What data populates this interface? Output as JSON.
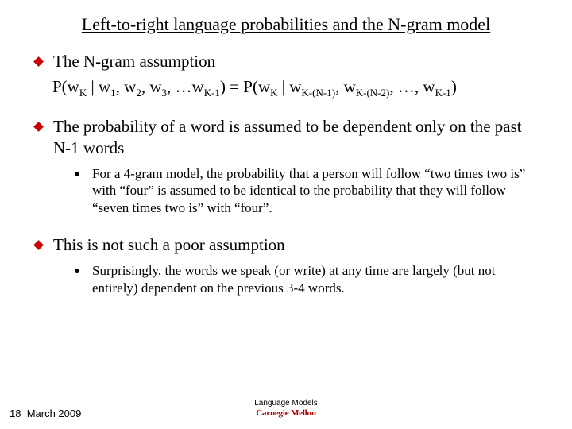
{
  "title": "Left-to-right language probabilities and the N-gram model",
  "points": {
    "p1": "The N-gram assumption",
    "p2": "The probability of a word is assumed to be dependent only on the past N-1 words",
    "p3": "This is not such a poor assumption"
  },
  "sub": {
    "s1": "For a 4-gram model, the probability that  a person will follow “two times two is” with “four” is assumed to be identical to the probability that  they will follow “seven times two is” with “four”.",
    "s2": "Surprisingly, the words we speak (or write) at any time are largely (but not entirely) dependent on the previous 3-4 words."
  },
  "formula": {
    "lhs_pre": "P(w",
    "lhs_k": "K",
    "bar": " | w",
    "s1": "1",
    "c": ", w",
    "s2": "2",
    "s3": "3",
    "dots": ", …w",
    "skm1": "K-1",
    "close": ") = P(w",
    "rk": "K",
    "rbar": " | w",
    "rkn1": "K-(N-1)",
    "rc": ", w",
    "rkn2": "K-(N-2)",
    "rdots": ", …, w",
    "rkm1": "K-1",
    "end": ")"
  },
  "footer": {
    "page": "18",
    "date": "March 2009",
    "caption": "Language Models",
    "logo": "Carnegie Mellon"
  },
  "colors": {
    "bullet": "#cc0000",
    "text": "#000000",
    "logo": "#aa0000",
    "bg": "#ffffff"
  }
}
